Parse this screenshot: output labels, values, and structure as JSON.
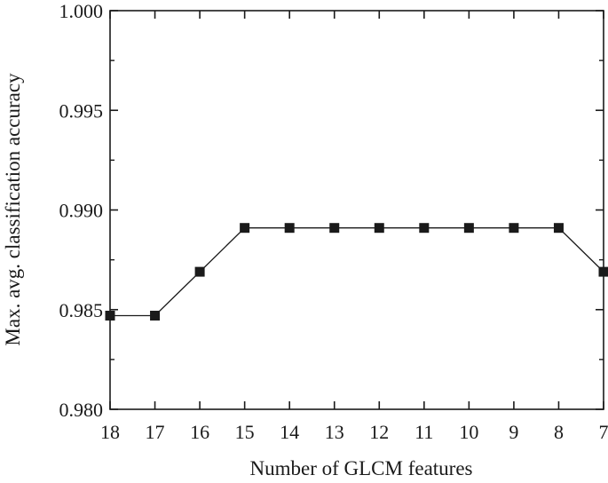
{
  "chart_data": {
    "type": "line",
    "xlabel": "Number of GLCM features",
    "ylabel": "Max. avg. classification accuracy",
    "x": [
      18,
      17,
      16,
      15,
      14,
      13,
      12,
      11,
      10,
      9,
      8,
      7
    ],
    "x_reversed": true,
    "xlim": [
      18,
      7
    ],
    "ylim": [
      0.98,
      1.0
    ],
    "yticks": [
      "0.980",
      "0.985",
      "0.990",
      "0.995",
      "1.000"
    ],
    "xticks": [
      "18",
      "17",
      "16",
      "15",
      "14",
      "13",
      "12",
      "11",
      "10",
      "9",
      "8",
      "7"
    ],
    "series": [
      {
        "values": [
          0.9847,
          0.9847,
          0.9869,
          0.9891,
          0.9891,
          0.9891,
          0.9891,
          0.9891,
          0.9891,
          0.9891,
          0.9891,
          0.9869
        ],
        "marker": "square",
        "color": "#1a1a1a"
      }
    ],
    "grid": false,
    "legend": "none"
  }
}
